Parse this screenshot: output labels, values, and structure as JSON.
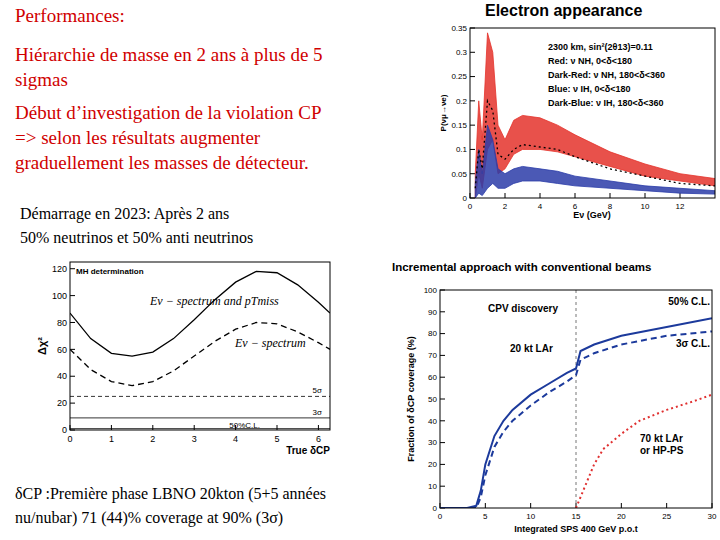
{
  "slide": {
    "heading": "Performances:",
    "points": [
      "Hiérarchie de masse en 2 ans à plus de 5",
      "sigmas",
      "Début d’investigation de la violation CP",
      "=> selon les résultats augmenter",
      "graduellement les masses de détecteur."
    ],
    "start": [
      "Démarrage en 2023: Après 2 ans",
      "50% neutrinos et 50% anti neutrinos"
    ],
    "conclusion": [
      "δCP :Première phase LBNO 20kton (5+5 années",
      "nu/nubar) 71 (44)% coverage at 90% (3σ)"
    ]
  },
  "chart_data": [
    {
      "type": "area",
      "title": "Electron appearance",
      "x_label": "Eν (GeV)",
      "y_label": "P(νμ→νe)",
      "legend_text": [
        "2300 km, sin²(2θ13)=0.11",
        "Red: ν NH, 0<δ<180",
        "Dark-Red: ν NH, 180<δ<360",
        "Blue: ν IH, 0<δ<180",
        "Dark-Blue: ν IH, 180<δ<360"
      ],
      "xlim": [
        0,
        14
      ],
      "ylim": [
        0,
        0.35
      ],
      "xticks": [
        0,
        2,
        4,
        6,
        8,
        10,
        12
      ],
      "yticks": [
        0,
        0.05,
        0.1,
        0.15,
        0.2,
        0.25,
        0.3,
        0.35
      ],
      "x": [
        0.3,
        0.5,
        0.7,
        1,
        1.3,
        1.6,
        2,
        2.5,
        3,
        4,
        5,
        6,
        8,
        10,
        12,
        14
      ],
      "series": [
        {
          "type": "area",
          "color": "#e4322b",
          "upper": [
            0.05,
            0.2,
            0.12,
            0.34,
            0.3,
            0.15,
            0.12,
            0.16,
            0.17,
            0.165,
            0.15,
            0.13,
            0.095,
            0.07,
            0.05,
            0.04
          ],
          "lower": [
            0.0,
            0.05,
            0.02,
            0.1,
            0.12,
            0.05,
            0.06,
            0.09,
            0.1,
            0.1,
            0.095,
            0.085,
            0.065,
            0.045,
            0.035,
            0.025
          ]
        },
        {
          "type": "area",
          "color": "#2b3ca8",
          "upper": [
            0.03,
            0.1,
            0.05,
            0.15,
            0.12,
            0.06,
            0.05,
            0.06,
            0.065,
            0.06,
            0.055,
            0.045,
            0.035,
            0.025,
            0.02,
            0.015
          ],
          "lower": [
            0.0,
            0.01,
            0.005,
            0.02,
            0.03,
            0.02,
            0.02,
            0.03,
            0.035,
            0.035,
            0.03,
            0.025,
            0.02,
            0.015,
            0.01,
            0.008
          ]
        },
        {
          "type": "line",
          "color": "#000000",
          "line_style": "dotted",
          "values": [
            0.02,
            0.1,
            0.06,
            0.2,
            0.18,
            0.09,
            0.08,
            0.1,
            0.11,
            0.105,
            0.1,
            0.085,
            0.06,
            0.045,
            0.03,
            0.025
          ]
        }
      ]
    },
    {
      "type": "line",
      "title": "MH determination",
      "x_label": "True δCP",
      "y_label": "Δχ²",
      "xlim": [
        0,
        6.28
      ],
      "ylim": [
        0,
        125
      ],
      "xticks": [
        0,
        1,
        2,
        3,
        4,
        5,
        6
      ],
      "yticks": [
        0,
        20,
        40,
        60,
        80,
        100,
        120
      ],
      "x": [
        0,
        0.5,
        1,
        1.5,
        2,
        2.5,
        3,
        3.5,
        4,
        4.5,
        5,
        5.5,
        6,
        6.28
      ],
      "series": [
        {
          "name": "Eν − spectrum and pTmiss",
          "color": "#000000",
          "line_style": "solid",
          "values": [
            87,
            68,
            57,
            55,
            58,
            68,
            82,
            97,
            110,
            118,
            117,
            108,
            95,
            87
          ]
        },
        {
          "name": "Eν − spectrum",
          "color": "#000000",
          "line_style": "dashed",
          "values": [
            60,
            45,
            36,
            33,
            36,
            44,
            55,
            66,
            75,
            80,
            79,
            73,
            65,
            60
          ]
        }
      ],
      "refs": [
        {
          "value": 25,
          "label": "5σ"
        },
        {
          "value": 9,
          "label": "3σ"
        },
        {
          "value": 1,
          "label": "50%C.L."
        }
      ]
    },
    {
      "type": "line",
      "title": "Incremental approach with conventional beams",
      "x_label": "Integrated SPS 400 GeV p.o.t",
      "y_label": "Fraction of δCP coverage (%)",
      "xlim": [
        0,
        30
      ],
      "ylim": [
        0,
        100
      ],
      "xticks": [
        0,
        5,
        10,
        15,
        20,
        25,
        30
      ],
      "yticks": [
        0,
        10,
        20,
        30,
        40,
        50,
        60,
        70,
        80,
        90,
        100
      ],
      "annotations": [
        "CPV discovery",
        "20 kt LAr",
        "70 kt LAr",
        "or HP-PS"
      ],
      "vline": 15,
      "series": [
        {
          "name": "50% C.L.",
          "color": "#1c3a9c",
          "line_style": "solid",
          "x": [
            0,
            3,
            4,
            4.5,
            5,
            6,
            7,
            8,
            10,
            12,
            14,
            15,
            15.5,
            17,
            20,
            25,
            30
          ],
          "values": [
            0,
            0,
            1,
            8,
            20,
            33,
            40,
            45,
            52,
            57,
            62,
            64,
            72,
            75,
            79,
            83,
            87
          ]
        },
        {
          "name": "3σ C.L.",
          "color": "#1c3a9c",
          "line_style": "dashed",
          "x": [
            0,
            3,
            4,
            4.5,
            5,
            6,
            7,
            8,
            10,
            12,
            14,
            15,
            15.5,
            17,
            20,
            25,
            30
          ],
          "values": [
            0,
            0,
            0,
            5,
            15,
            28,
            35,
            40,
            47,
            53,
            58,
            61,
            68,
            71,
            75,
            79,
            81
          ]
        },
        {
          "color": "#e03030",
          "line_style": "dotted",
          "x": [
            15,
            16,
            17,
            18,
            20,
            22,
            25,
            28,
            30
          ],
          "values": [
            0,
            10,
            20,
            27,
            34,
            40,
            45,
            49,
            52
          ]
        }
      ]
    }
  ]
}
